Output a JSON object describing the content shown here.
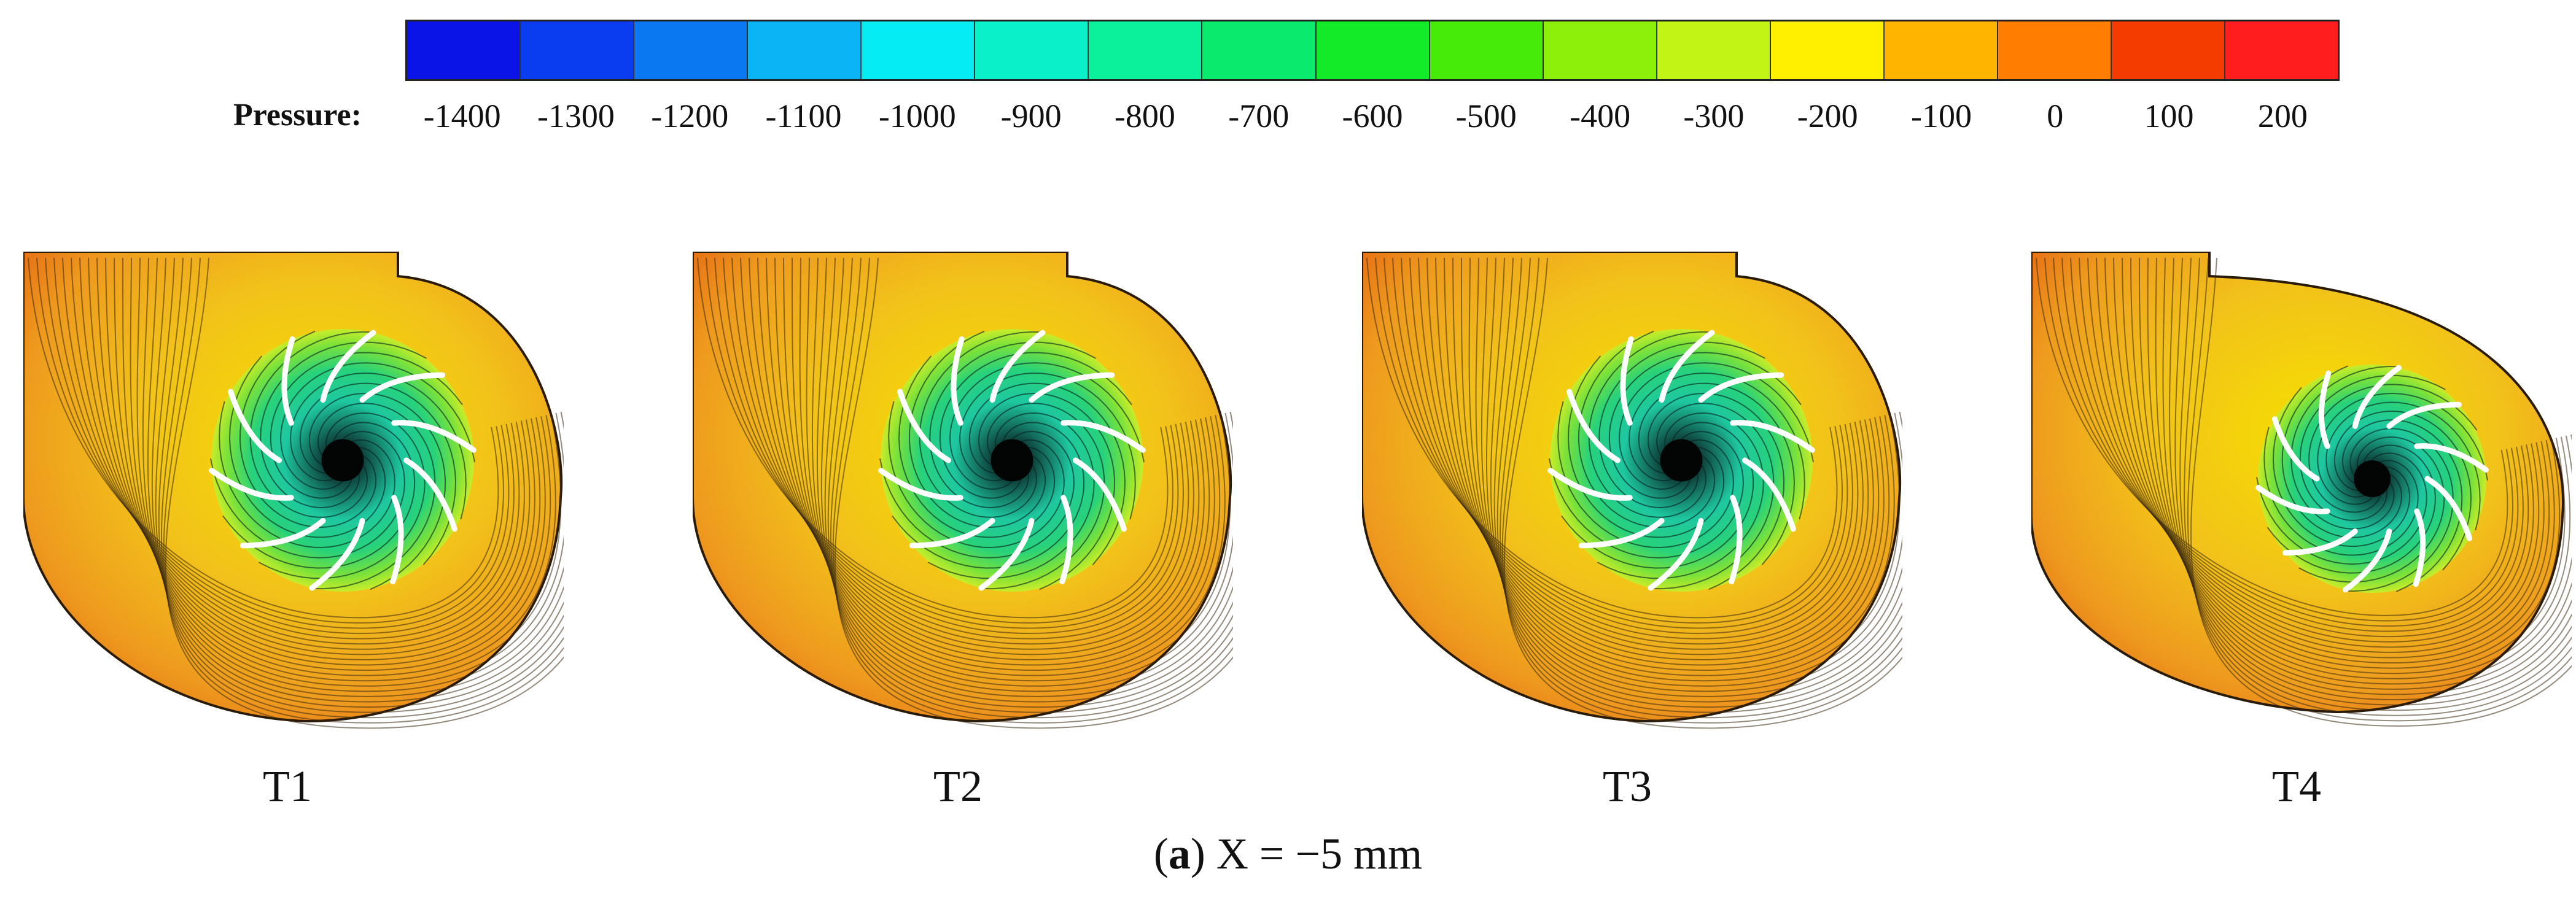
{
  "colorbar": {
    "title": "Pressure:",
    "tick_labels": [
      "-1400",
      "-1300",
      "-1200",
      "-1100",
      "-1000",
      "-900",
      "-800",
      "-700",
      "-600",
      "-500",
      "-400",
      "-300",
      "-200",
      "-100",
      "0",
      "100",
      "200"
    ],
    "colors": [
      "#0a14e6",
      "#0a3cf0",
      "#0a78f0",
      "#0ab4f5",
      "#05ecf5",
      "#0af0c8",
      "#0af09b",
      "#0aeb6e",
      "#14eb28",
      "#46eb0a",
      "#8cf00a",
      "#c3f514",
      "#fff000",
      "#ffb400",
      "#ff7d00",
      "#f53c00",
      "#ff1e1e"
    ]
  },
  "panels": [
    {
      "label": "T1"
    },
    {
      "label": "T2"
    },
    {
      "label": "T3"
    },
    {
      "label": "T4"
    }
  ],
  "caption": {
    "letter": "a",
    "open": "(",
    "close": ")",
    "text": " X = −5 mm"
  }
}
